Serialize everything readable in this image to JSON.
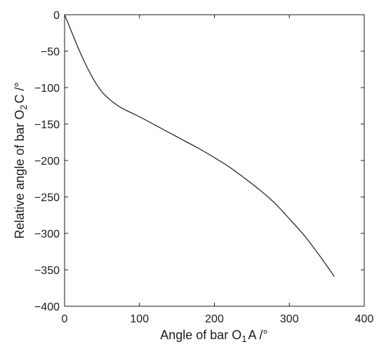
{
  "chart_data": {
    "type": "line",
    "xlabel": {
      "main": "Angle of bar O",
      "sub": "1",
      "rest": "A /°"
    },
    "ylabel": {
      "main": "Relative angle of bar O",
      "sub": "2",
      "rest": "C /°"
    },
    "xlim": [
      0,
      400
    ],
    "ylim": [
      -400,
      0
    ],
    "xticks": [
      0,
      100,
      200,
      300,
      400
    ],
    "yticks": [
      0,
      -50,
      -100,
      -150,
      -200,
      -250,
      -300,
      -350,
      -400
    ],
    "xtick_labels": [
      "0",
      "100",
      "200",
      "300",
      "400"
    ],
    "ytick_labels": [
      "0",
      "−50",
      "−100",
      "−150",
      "−200",
      "−250",
      "−300",
      "−350",
      "−400"
    ],
    "grid": false,
    "line_color": "#1a1a1a",
    "series": [
      {
        "x": [
          0,
          10,
          20,
          30,
          40,
          50,
          60,
          70,
          80,
          90,
          100,
          120,
          140,
          160,
          180,
          200,
          220,
          240,
          260,
          280,
          300,
          320,
          340,
          360
        ],
        "y": [
          0,
          -25,
          -50,
          -72,
          -91,
          -106,
          -116,
          -124,
          -130,
          -135,
          -140,
          -151,
          -162,
          -173,
          -184,
          -196,
          -209,
          -224,
          -240,
          -258,
          -280,
          -303,
          -330,
          -359
        ]
      }
    ]
  }
}
